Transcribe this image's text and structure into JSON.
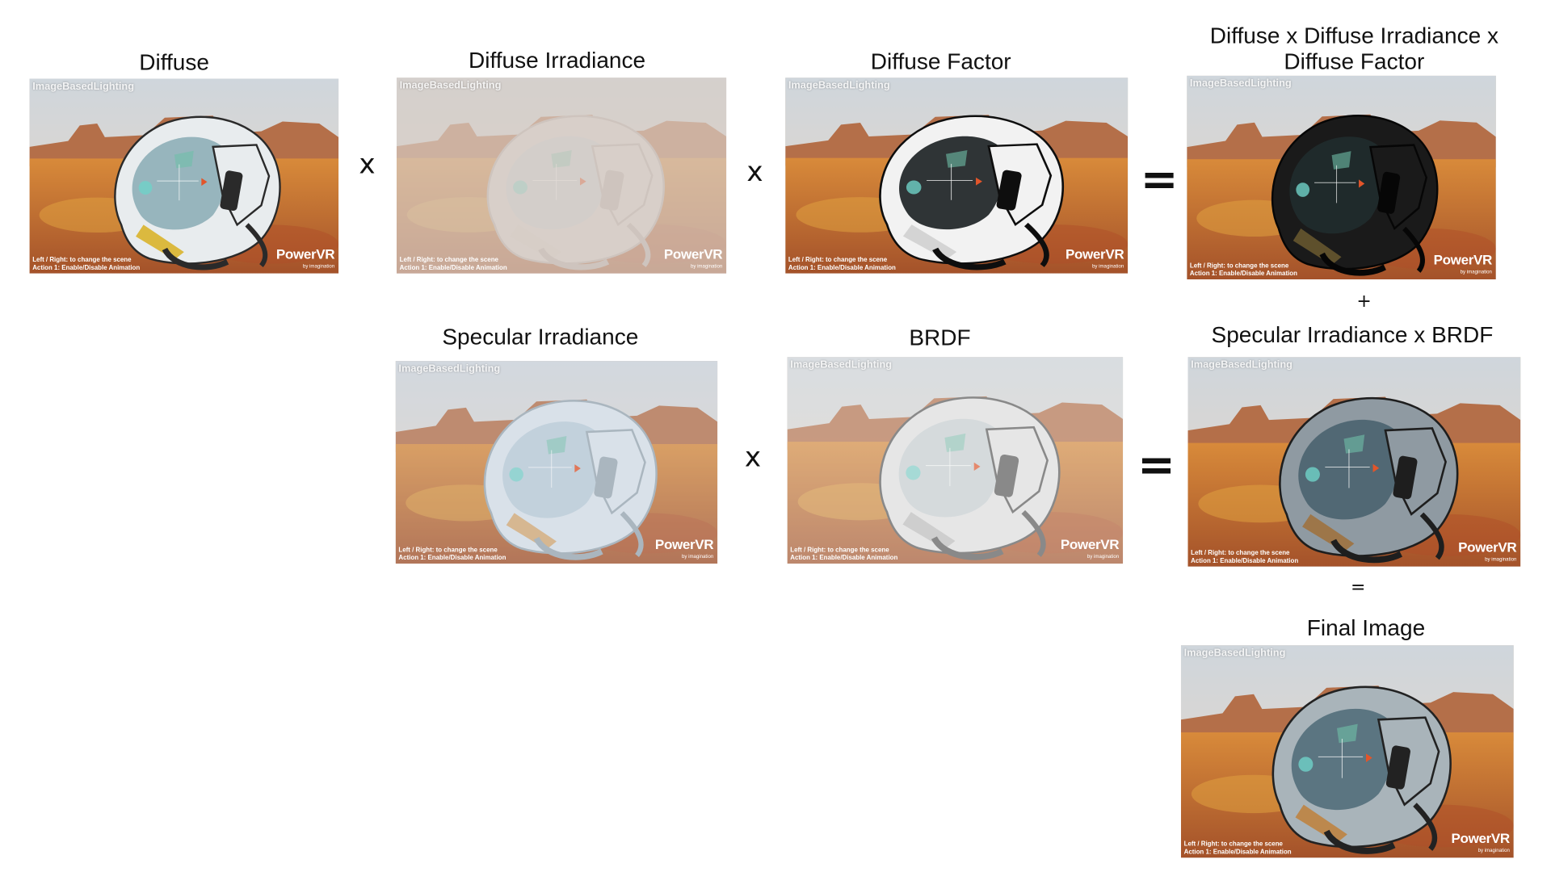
{
  "labels": {
    "diffuse": "Diffuse",
    "diffuse_irradiance": "Diffuse Irradiance",
    "diffuse_factor": "Diffuse Factor",
    "diffuse_product": "Diffuse x Diffuse Irradiance x Diffuse Factor",
    "specular_irradiance": "Specular Irradiance",
    "brdf": "BRDF",
    "specular_product": "Specular Irradiance x BRDF",
    "final_image": "Final Image"
  },
  "operators": {
    "multiply": "x",
    "equals": "=",
    "plus": "+"
  },
  "screenshot_overlay": {
    "app_title": "ImageBasedLighting",
    "hint_line1": "Left / Right: to change the scene",
    "hint_line2": "Action 1: Enable/Disable Animation",
    "brand": "PowerVR",
    "brand_sub": "by imagination"
  },
  "colors": {
    "sky": "#cfd6dc",
    "mesa": "#b0643a",
    "ground": "#c8702e",
    "helmet_white": "#e8ecee",
    "helmet_visor": "#8fb0b8",
    "helmet_dark": "#1c1c1c",
    "accent_yellow": "#d8b020"
  }
}
